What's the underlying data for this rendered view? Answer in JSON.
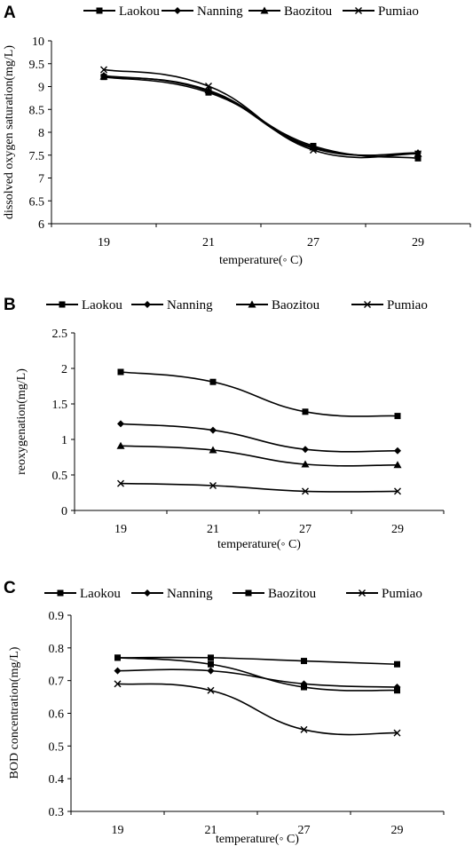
{
  "chart_data": [
    {
      "panel": "A",
      "type": "line",
      "categories": [
        "19",
        "21",
        "27",
        "29"
      ],
      "xlabel": "temperature(◦ C)",
      "ylabel": "dissolved oxygen saturation(mg/L)",
      "ylim": [
        6,
        10
      ],
      "yticks": [
        "6",
        "6.5",
        "7",
        "7.5",
        "8",
        "8.5",
        "9",
        "9.5",
        "10"
      ],
      "grid": false,
      "legend": "top",
      "series": [
        {
          "name": "Laokou",
          "marker": "square",
          "values": [
            9.21,
            8.87,
            7.7,
            7.43
          ]
        },
        {
          "name": "Nanning",
          "marker": "diamond",
          "values": [
            9.24,
            8.9,
            7.65,
            7.55
          ]
        },
        {
          "name": "Baozitou",
          "marker": "triangle",
          "values": [
            9.22,
            8.92,
            7.67,
            7.53
          ]
        },
        {
          "name": "Pumiao",
          "marker": "x",
          "values": [
            9.37,
            9.01,
            7.61,
            7.53
          ]
        }
      ]
    },
    {
      "panel": "B",
      "type": "line",
      "categories": [
        "19",
        "21",
        "27",
        "29"
      ],
      "xlabel": "temperature(◦ C)",
      "ylabel": "reoxygenation(mg/L)",
      "ylim": [
        0,
        2.5
      ],
      "yticks": [
        "0",
        "0.5",
        "1",
        "1.5",
        "2",
        "2.5"
      ],
      "grid": false,
      "legend": "top",
      "series": [
        {
          "name": "Laokou",
          "marker": "square",
          "values": [
            1.95,
            1.81,
            1.39,
            1.33
          ]
        },
        {
          "name": "Nanning",
          "marker": "diamond",
          "values": [
            1.22,
            1.13,
            0.86,
            0.84
          ]
        },
        {
          "name": "Baozitou",
          "marker": "triangle",
          "values": [
            0.91,
            0.85,
            0.65,
            0.64
          ]
        },
        {
          "name": "Pumiao",
          "marker": "x",
          "values": [
            0.38,
            0.35,
            0.27,
            0.27
          ]
        }
      ]
    },
    {
      "panel": "C",
      "type": "line",
      "categories": [
        "19",
        "21",
        "27",
        "29"
      ],
      "xlabel": "temperature(◦ C)",
      "ylabel": "BOD concentration(mg/L)",
      "ylim": [
        0.3,
        0.9
      ],
      "yticks": [
        "0.3",
        "0.4",
        "0.5",
        "0.6",
        "0.7",
        "0.8",
        "0.9"
      ],
      "grid": false,
      "legend": "top",
      "series": [
        {
          "name": "Laokou",
          "marker": "square",
          "values": [
            0.77,
            0.77,
            0.76,
            0.75
          ]
        },
        {
          "name": "Nanning",
          "marker": "diamond",
          "values": [
            0.73,
            0.73,
            0.69,
            0.68
          ]
        },
        {
          "name": "Baozitou",
          "marker": "square",
          "values": [
            0.77,
            0.75,
            0.68,
            0.67
          ]
        },
        {
          "name": "Pumiao",
          "marker": "x",
          "values": [
            0.69,
            0.67,
            0.55,
            0.54
          ]
        }
      ]
    }
  ]
}
